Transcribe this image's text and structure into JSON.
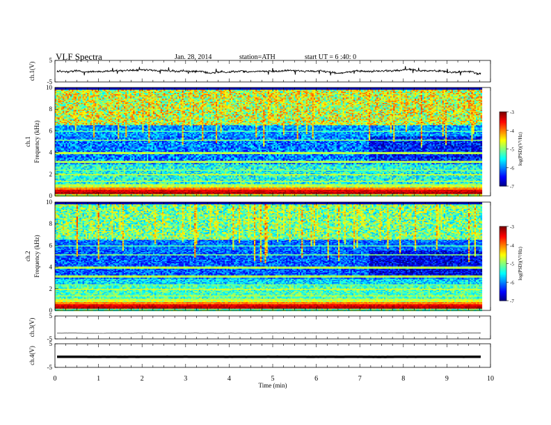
{
  "header": {
    "title": "VLF  Spectra",
    "date": "Jan. 28, 2014",
    "station": "station=ATH",
    "start_ut": "start  UT =   6 :40: 0"
  },
  "chart_data": [
    {
      "type": "line",
      "panel": "ch1",
      "ylabel": "ch.1(V)",
      "ylim": [
        -5,
        5
      ],
      "yticks": [
        "5",
        "-5"
      ],
      "xlim": [
        0,
        10
      ],
      "description_values": {
        "mean_level": 0.0,
        "amplitude": 0.6
      }
    },
    {
      "type": "heatmap",
      "panel": "ch1-spectrogram",
      "ylabel_line1": "ch.1",
      "ylabel_line2": "Frequency (kHz)",
      "ylim": [
        0,
        10
      ],
      "yticks": [
        "0",
        "2",
        "4",
        "6",
        "8",
        "10"
      ],
      "xlim": [
        0,
        9.8
      ],
      "colorbar": {
        "label": "log(PSD)(V²/Hz)",
        "range": [
          -7,
          -3
        ],
        "ticks": [
          "-3",
          "-4",
          "-5",
          "-6",
          "-7"
        ]
      }
    },
    {
      "type": "heatmap",
      "panel": "ch2-spectrogram",
      "ylabel_line1": "ch.2",
      "ylabel_line2": "Frequency (kHz)",
      "ylim": [
        0,
        10
      ],
      "yticks": [
        "0",
        "2",
        "4",
        "6",
        "8",
        "10"
      ],
      "xlim": [
        0,
        9.8
      ],
      "colorbar": {
        "label": "log(PSD)(V²/Hz)",
        "range": [
          -7,
          -3
        ],
        "ticks": [
          "-3",
          "-4",
          "-5",
          "-6",
          "-7"
        ]
      }
    },
    {
      "type": "line",
      "panel": "ch3",
      "ylabel": "ch.3(V)",
      "ylim": [
        -5,
        5
      ],
      "yticks": [
        "5",
        "-5"
      ],
      "xlim": [
        0,
        10
      ],
      "description_values": {
        "mean_level": -2.5,
        "amplitude": 0.05
      }
    },
    {
      "type": "line",
      "panel": "ch4",
      "ylabel": "ch.4(V)",
      "ylim": [
        -5,
        5
      ],
      "yticks": [
        "5",
        "-5"
      ],
      "xlim": [
        0,
        10
      ],
      "description_values": {
        "mean_level": -0.5,
        "amplitude": 0.15
      }
    }
  ],
  "xaxis": {
    "label": "Time  (min)",
    "ticks": [
      "0",
      "1",
      "2",
      "3",
      "4",
      "5",
      "6",
      "7",
      "8",
      "9",
      "10"
    ]
  },
  "colors": {
    "axis": "#000000",
    "trace": "#000000"
  }
}
